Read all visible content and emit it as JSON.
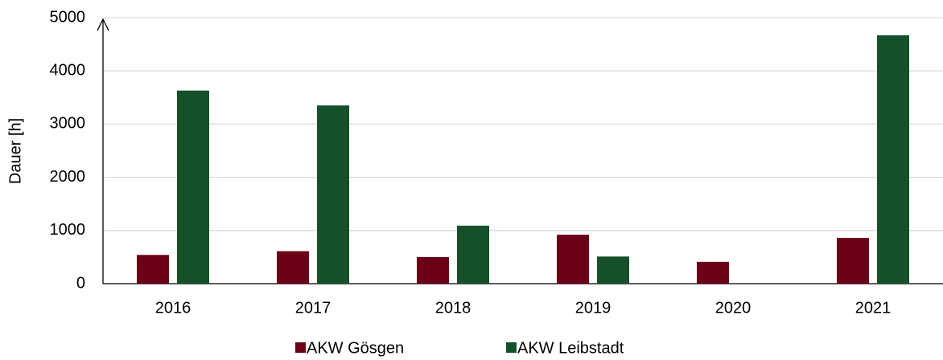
{
  "chart_data": {
    "type": "bar",
    "y_label": "Dauer [h]",
    "categories": [
      "2016",
      "2017",
      "2018",
      "2019",
      "2020",
      "2021"
    ],
    "series": [
      {
        "name": "AKW Gösgen",
        "color": "#6b0016",
        "values": [
          540,
          610,
          500,
          920,
          410,
          860
        ]
      },
      {
        "name": "AKW Leibstadt",
        "color": "#16502a",
        "values": [
          3630,
          3350,
          1090,
          510,
          0,
          4670
        ]
      }
    ],
    "ylim": [
      0,
      5000
    ],
    "yticks": [
      0,
      1000,
      2000,
      3000,
      4000,
      5000
    ],
    "grid": true,
    "legend": "bottom"
  }
}
